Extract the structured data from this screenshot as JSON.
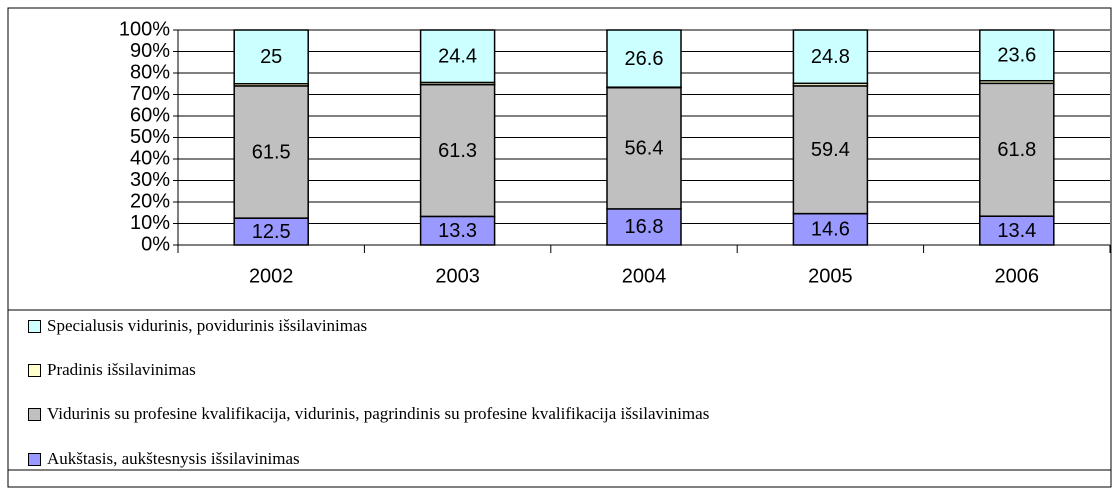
{
  "chart_data": {
    "type": "stacked_bar",
    "categories": [
      "2002",
      "2003",
      "2004",
      "2005",
      "2006"
    ],
    "series": [
      {
        "name": "Aukštasis, aukštesnysis išsilavinimas",
        "color": "#9999ff",
        "values": [
          12.5,
          13.3,
          16.8,
          14.6,
          13.4
        ]
      },
      {
        "name": "Vidurinis su profesine kvalifikacija, vidurinis, pagrindinis su profesine kvalifikacija išsilavinimas",
        "color": "#c0c0c0",
        "values": [
          61.5,
          61.3,
          56.4,
          59.4,
          61.8
        ]
      },
      {
        "name": "Pradinis išsilavinimas",
        "color": "#ffffcc",
        "values": [
          1.0,
          1.0,
          0.2,
          1.2,
          1.2
        ]
      },
      {
        "name": "Specialusis vidurinis, povidurinis išsilavinimas",
        "color": "#ccffff",
        "values": [
          25,
          24.4,
          26.6,
          24.8,
          23.6
        ]
      }
    ],
    "data_labels": [
      true,
      true,
      false,
      true
    ],
    "ylim": [
      0,
      100
    ],
    "yticks": [
      {
        "value": 0,
        "label": "0%"
      },
      {
        "value": 10,
        "label": "10%"
      },
      {
        "value": 20,
        "label": "20%"
      },
      {
        "value": 30,
        "label": "30%"
      },
      {
        "value": 40,
        "label": "40%"
      },
      {
        "value": 50,
        "label": "50%"
      },
      {
        "value": 60,
        "label": "60%"
      },
      {
        "value": 70,
        "label": "70%"
      },
      {
        "value": 80,
        "label": "80%"
      },
      {
        "value": 90,
        "label": "90%"
      },
      {
        "value": 100,
        "label": "100%"
      }
    ],
    "grid": true
  }
}
